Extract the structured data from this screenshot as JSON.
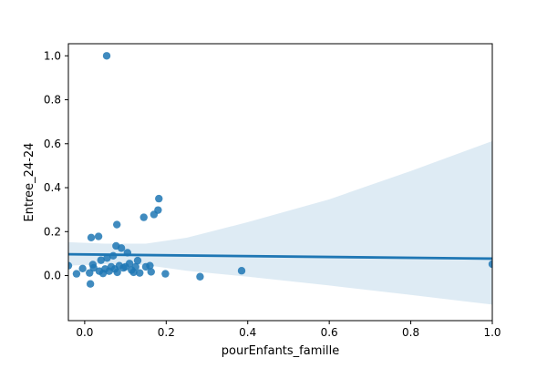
{
  "chart_data": {
    "type": "scatter",
    "title": "",
    "xlabel": "pourEnfants_famille",
    "ylabel": "Entree_24-24",
    "xlim": [
      -0.04,
      1.0
    ],
    "ylim": [
      -0.205,
      1.055
    ],
    "xticks": [
      0.0,
      0.2,
      0.4,
      0.6,
      0.8,
      1.0
    ],
    "xtick_labels": [
      "0.0",
      "0.2",
      "0.4",
      "0.6",
      "0.8",
      "1.0"
    ],
    "yticks": [
      0.0,
      0.2,
      0.4,
      0.6,
      0.8,
      1.0
    ],
    "ytick_labels": [
      "0.0",
      "0.2",
      "0.4",
      "0.6",
      "0.8",
      "1.0"
    ],
    "grid": false,
    "legend": "none",
    "colors": {
      "points": "#1f77b4",
      "line": "#1f77b4",
      "band": "#1f77b4"
    },
    "series": [
      {
        "points": [
          {
            "x": 0.054,
            "y": 1.0
          },
          {
            "x": -0.04,
            "y": 0.045
          },
          {
            "x": -0.02,
            "y": 0.008
          },
          {
            "x": -0.005,
            "y": 0.032
          },
          {
            "x": 0.012,
            "y": 0.012
          },
          {
            "x": 0.014,
            "y": -0.038
          },
          {
            "x": 0.016,
            "y": 0.173
          },
          {
            "x": 0.02,
            "y": 0.05
          },
          {
            "x": 0.022,
            "y": 0.035
          },
          {
            "x": 0.034,
            "y": 0.178
          },
          {
            "x": 0.036,
            "y": 0.02
          },
          {
            "x": 0.04,
            "y": 0.07
          },
          {
            "x": 0.045,
            "y": 0.01
          },
          {
            "x": 0.05,
            "y": 0.03
          },
          {
            "x": 0.055,
            "y": 0.08
          },
          {
            "x": 0.06,
            "y": 0.02
          },
          {
            "x": 0.065,
            "y": 0.04
          },
          {
            "x": 0.07,
            "y": 0.09
          },
          {
            "x": 0.074,
            "y": 0.03
          },
          {
            "x": 0.077,
            "y": 0.135
          },
          {
            "x": 0.079,
            "y": 0.232
          },
          {
            "x": 0.08,
            "y": 0.015
          },
          {
            "x": 0.085,
            "y": 0.045
          },
          {
            "x": 0.09,
            "y": 0.125
          },
          {
            "x": 0.095,
            "y": 0.035
          },
          {
            "x": 0.1,
            "y": 0.04
          },
          {
            "x": 0.105,
            "y": 0.104
          },
          {
            "x": 0.11,
            "y": 0.055
          },
          {
            "x": 0.115,
            "y": 0.025
          },
          {
            "x": 0.12,
            "y": 0.015
          },
          {
            "x": 0.125,
            "y": 0.04
          },
          {
            "x": 0.13,
            "y": 0.068
          },
          {
            "x": 0.135,
            "y": 0.012
          },
          {
            "x": 0.145,
            "y": 0.265
          },
          {
            "x": 0.15,
            "y": 0.04
          },
          {
            "x": 0.16,
            "y": 0.045
          },
          {
            "x": 0.163,
            "y": 0.017
          },
          {
            "x": 0.17,
            "y": 0.278
          },
          {
            "x": 0.18,
            "y": 0.298
          },
          {
            "x": 0.182,
            "y": 0.35
          },
          {
            "x": 0.198,
            "y": 0.008
          },
          {
            "x": 0.283,
            "y": -0.005
          },
          {
            "x": 0.385,
            "y": 0.022
          },
          {
            "x": 1.0,
            "y": 0.052
          }
        ]
      }
    ],
    "regression": {
      "line": [
        [
          -0.04,
          0.097
        ],
        [
          1.0,
          0.077
        ]
      ],
      "ci_upper": [
        [
          -0.04,
          0.152
        ],
        [
          0.05,
          0.145
        ],
        [
          0.15,
          0.145
        ],
        [
          0.25,
          0.172
        ],
        [
          0.4,
          0.243
        ],
        [
          0.6,
          0.347
        ],
        [
          0.8,
          0.476
        ],
        [
          1.0,
          0.612
        ]
      ],
      "ci_lower": [
        [
          -0.04,
          0.045
        ],
        [
          0.05,
          0.052
        ],
        [
          0.15,
          0.048
        ],
        [
          0.25,
          0.022
        ],
        [
          0.4,
          -0.005
        ],
        [
          0.6,
          -0.045
        ],
        [
          0.8,
          -0.088
        ],
        [
          1.0,
          -0.132
        ]
      ]
    }
  }
}
